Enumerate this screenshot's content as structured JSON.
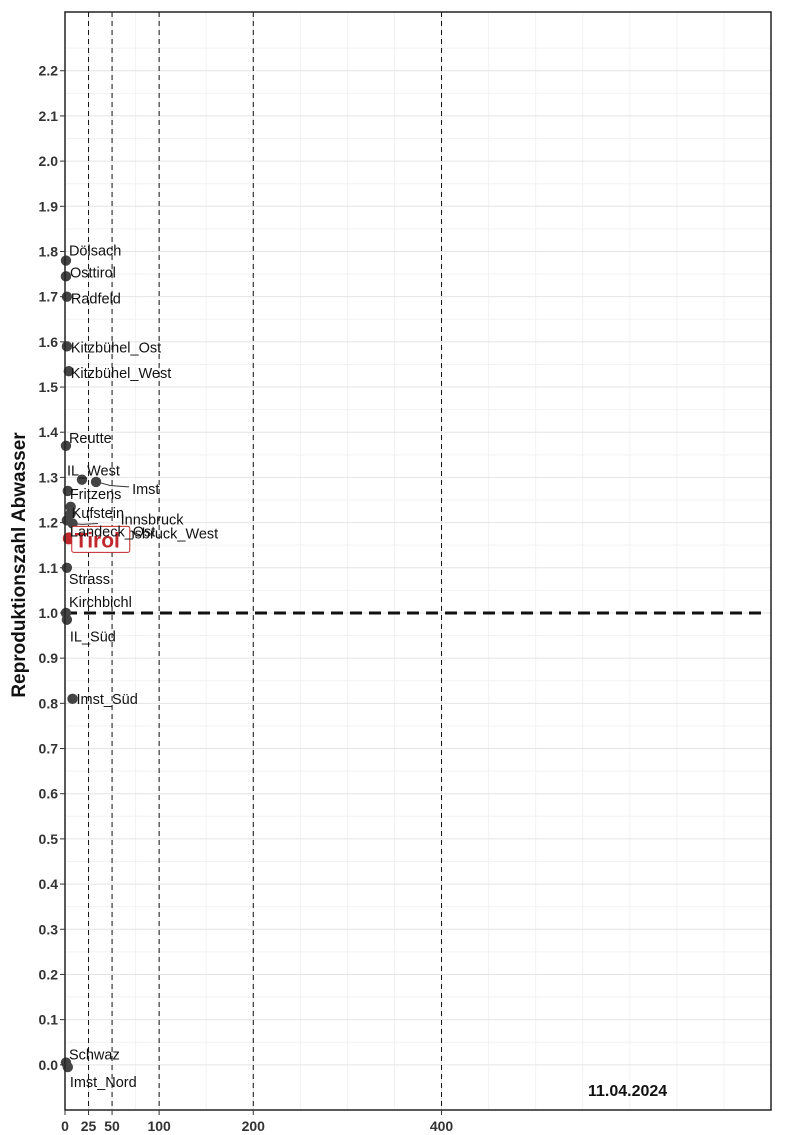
{
  "chart_data": {
    "type": "scatter",
    "title": "",
    "xlabel": "",
    "ylabel": "Reproduktionszahl Abwasser",
    "date": "11.04.2024",
    "xlim": [
      0,
      750
    ],
    "ylim": [
      -0.1,
      2.33
    ],
    "x_ticks": [
      0,
      25,
      50,
      100,
      200,
      400
    ],
    "x_tick_labels": [
      "0",
      "25",
      "50",
      "100",
      "200",
      "400"
    ],
    "x_reference_lines": [
      25,
      50,
      100,
      200,
      400
    ],
    "y_ticks": [
      0.0,
      0.1,
      0.2,
      0.3,
      0.4,
      0.5,
      0.6,
      0.7,
      0.8,
      0.9,
      1.0,
      1.1,
      1.2,
      1.3,
      1.4,
      1.5,
      1.6,
      1.7,
      1.8,
      1.9,
      2.0,
      2.1,
      2.2
    ],
    "y_tick_labels": [
      "0.0",
      "0.1",
      "0.2",
      "0.3",
      "0.4",
      "0.5",
      "0.6",
      "0.7",
      "0.8",
      "0.9",
      "1.0",
      "1.1",
      "1.2",
      "1.3",
      "1.4",
      "1.5",
      "1.6",
      "1.7",
      "1.8",
      "1.9",
      "2.0",
      "2.1",
      "2.2"
    ],
    "y_reference_line": 1.0,
    "grid": true,
    "points": [
      {
        "label": "Dölsach",
        "x": 1,
        "y": 1.78
      },
      {
        "label": "Osttirol",
        "x": 1,
        "y": 1.745
      },
      {
        "label": "Radfeld",
        "x": 2,
        "y": 1.7
      },
      {
        "label": "Kitzbühel_Ost",
        "x": 2,
        "y": 1.59
      },
      {
        "label": "Kitzbühel_West",
        "x": 4,
        "y": 1.535
      },
      {
        "label": "Reutte",
        "x": 1,
        "y": 1.37
      },
      {
        "label": "IL_West",
        "x": 18,
        "y": 1.295
      },
      {
        "label": "Imst",
        "x": 33,
        "y": 1.29
      },
      {
        "label": "Fritzens",
        "x": 3,
        "y": 1.27
      },
      {
        "label": "Kufstein",
        "x": 6,
        "y": 1.235
      },
      {
        "label": "Innsbruck",
        "x": 6,
        "y": 1.22
      },
      {
        "label": "Innsbruck_West",
        "x": 8,
        "y": 1.198
      },
      {
        "label": "Tirol",
        "x": 4,
        "y": 1.165
      },
      {
        "label": "Landeck_Ost",
        "x": 2,
        "y": 1.205
      },
      {
        "label": "Strass",
        "x": 2,
        "y": 1.1
      },
      {
        "label": "Kirchbichl",
        "x": 1,
        "y": 1.0
      },
      {
        "label": "IL_Süd",
        "x": 2,
        "y": 0.985
      },
      {
        "label": "Imst_Süd",
        "x": 8,
        "y": 0.81
      },
      {
        "label": "Schwaz",
        "x": 1,
        "y": 0.005
      },
      {
        "label": "Imst_Nord",
        "x": 3,
        "y": -0.005
      }
    ],
    "point_color": "#444444",
    "highlight_color": "#c0282d"
  }
}
